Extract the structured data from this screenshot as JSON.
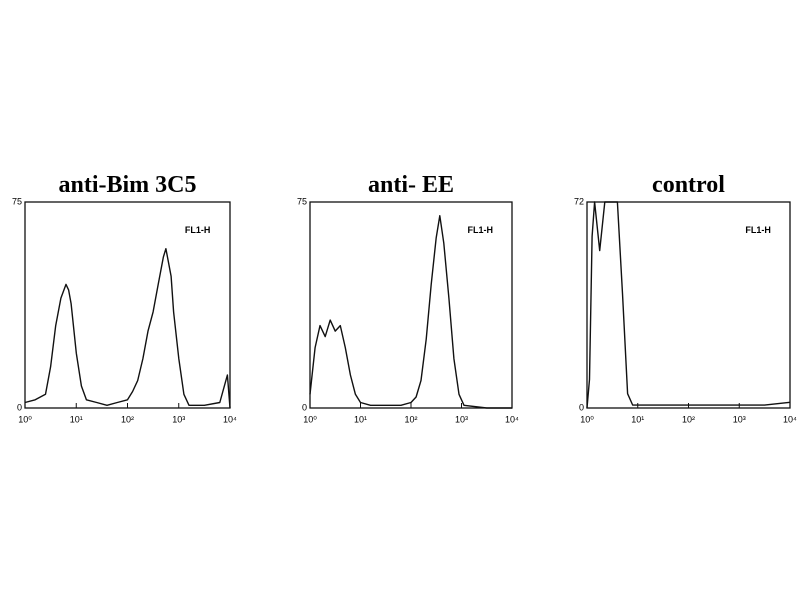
{
  "chart_data": [
    {
      "type": "line",
      "title": "anti-Bim 3C5",
      "annotation": "FL1-H",
      "color": "#111111",
      "xscale": "log",
      "x": [
        1,
        1.58,
        2.51,
        3.16,
        3.98,
        5.01,
        6.31,
        7.08,
        7.94,
        10,
        12.6,
        15.8,
        25.1,
        39.8,
        63.1,
        100,
        126,
        158,
        200,
        251,
        316,
        398,
        501,
        562,
        708,
        794,
        1000,
        1259,
        1585,
        3162,
        6310,
        8913,
        10000
      ],
      "values": [
        2,
        3,
        5,
        15,
        30,
        40,
        45,
        43,
        38,
        20,
        8,
        3,
        2,
        1,
        2,
        3,
        6,
        10,
        18,
        28,
        35,
        45,
        55,
        58,
        48,
        35,
        18,
        5,
        1,
        1,
        2,
        12,
        0
      ],
      "xlim": [
        1,
        10000
      ],
      "ylim": [
        0,
        75
      ],
      "xticks": [
        {
          "value": 1,
          "label": "10⁰"
        },
        {
          "value": 10,
          "label": "10¹"
        },
        {
          "value": 100,
          "label": "10²"
        },
        {
          "value": 1000,
          "label": "10³"
        },
        {
          "value": 10000,
          "label": "10⁴"
        }
      ],
      "yticks": [
        0,
        75
      ]
    },
    {
      "type": "line",
      "title": "anti- EE",
      "annotation": "FL1-H",
      "color": "#111111",
      "xscale": "log",
      "x": [
        1,
        1.26,
        1.58,
        2,
        2.51,
        3.16,
        3.98,
        5.01,
        6.31,
        7.94,
        10,
        15.8,
        31.6,
        63.1,
        100,
        126,
        158,
        200,
        251,
        316,
        372,
        447,
        562,
        708,
        891,
        1122,
        3162,
        10000
      ],
      "values": [
        5,
        22,
        30,
        26,
        32,
        28,
        30,
        22,
        12,
        5,
        2,
        1,
        1,
        1,
        2,
        4,
        10,
        25,
        45,
        62,
        70,
        60,
        40,
        18,
        5,
        1,
        0,
        0
      ],
      "xlim": [
        1,
        10000
      ],
      "ylim": [
        0,
        75
      ],
      "xticks": [
        {
          "value": 1,
          "label": "10⁰"
        },
        {
          "value": 10,
          "label": "10¹"
        },
        {
          "value": 100,
          "label": "10²"
        },
        {
          "value": 1000,
          "label": "10³"
        },
        {
          "value": 10000,
          "label": "10⁴"
        }
      ],
      "yticks": [
        0,
        75
      ]
    },
    {
      "type": "line",
      "title": "control",
      "annotation": "FL1-H",
      "color": "#111111",
      "xscale": "log",
      "x": [
        1,
        1.12,
        1.26,
        1.41,
        1.78,
        2.24,
        3.16,
        3.98,
        5.01,
        6.31,
        7.94,
        31.6,
        100,
        316,
        1000,
        3162,
        10000
      ],
      "values": [
        0,
        10,
        60,
        72,
        55,
        72,
        72,
        72,
        40,
        5,
        1,
        1,
        1,
        1,
        1,
        1,
        2
      ],
      "xlim": [
        1,
        10000
      ],
      "ylim": [
        0,
        72
      ],
      "xticks": [
        {
          "value": 1,
          "label": "10⁰"
        },
        {
          "value": 10,
          "label": "10¹"
        },
        {
          "value": 100,
          "label": "10²"
        },
        {
          "value": 1000,
          "label": "10³"
        },
        {
          "value": 10000,
          "label": "10⁴"
        }
      ],
      "yticks": [
        0,
        72
      ]
    }
  ]
}
